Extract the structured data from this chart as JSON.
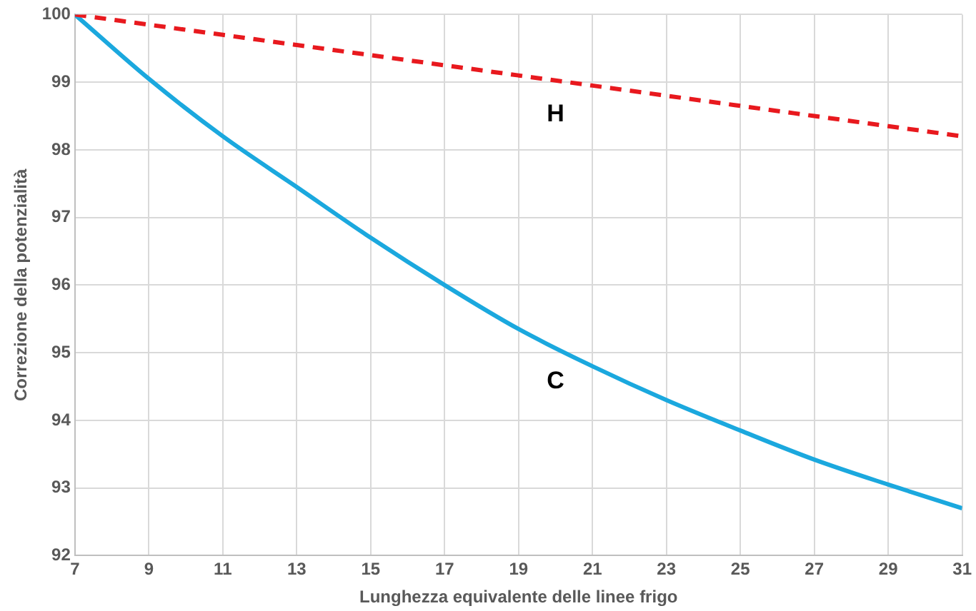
{
  "chart_data": {
    "type": "line",
    "xlabel": "Lunghezza equivalente delle linee frigo",
    "ylabel": "Correzione della potenzialità",
    "x": [
      7,
      9,
      11,
      13,
      15,
      17,
      19,
      21,
      23,
      25,
      27,
      29,
      31
    ],
    "series": [
      {
        "name": "H",
        "color": "#e8191e",
        "line_style": "dashed",
        "values": [
          100,
          99.85,
          99.7,
          99.55,
          99.4,
          99.25,
          99.1,
          98.95,
          98.8,
          98.65,
          98.5,
          98.35,
          98.2
        ]
      },
      {
        "name": "C",
        "color": "#1ba8de",
        "line_style": "solid",
        "values": [
          100,
          99.05,
          98.2,
          97.45,
          96.7,
          96.0,
          95.35,
          94.8,
          94.3,
          93.85,
          93.42,
          93.05,
          92.7
        ]
      }
    ],
    "xlim": [
      7,
      31
    ],
    "xticks": [
      7,
      9,
      11,
      13,
      15,
      17,
      19,
      21,
      23,
      25,
      27,
      29,
      31
    ],
    "ylim": [
      92,
      100
    ],
    "yticks": [
      92,
      93,
      94,
      95,
      96,
      97,
      98,
      99,
      100
    ],
    "grid": true,
    "legend": false,
    "marker": "none"
  }
}
